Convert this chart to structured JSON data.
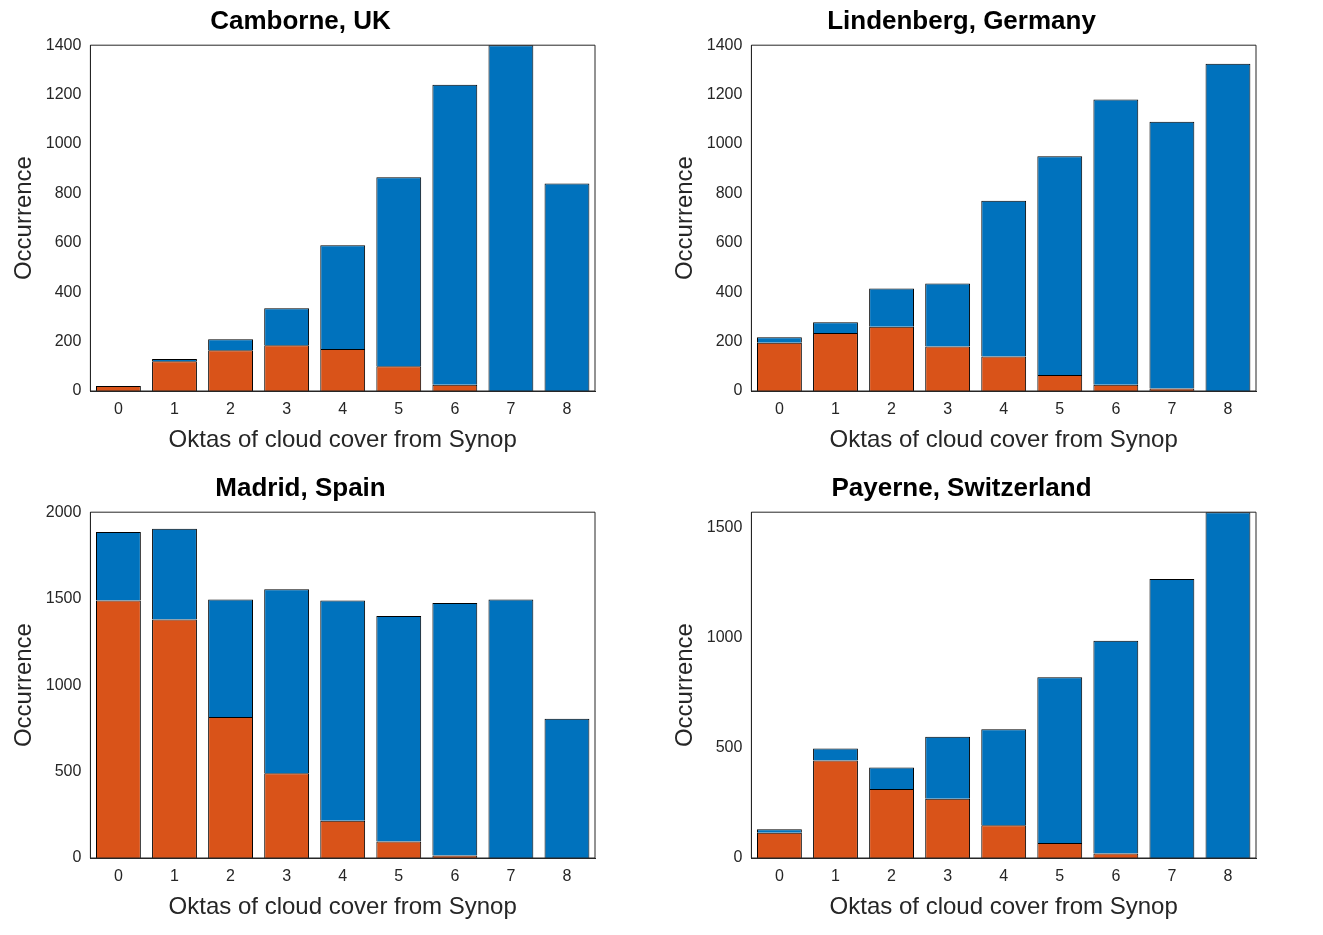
{
  "chart_data": [
    {
      "type": "bar",
      "title": "Camborne, UK",
      "xlabel": "Oktas of cloud cover from Synop",
      "ylabel": "Occurrence",
      "stacked": true,
      "grid": false,
      "categories": [
        "0",
        "1",
        "2",
        "3",
        "4",
        "5",
        "6",
        "7",
        "8"
      ],
      "ylim": [
        0,
        1400
      ],
      "yticks": [
        0,
        200,
        400,
        600,
        800,
        1000,
        1200,
        1400
      ],
      "series": [
        {
          "color": "#d95319",
          "values": [
            20,
            120,
            165,
            185,
            170,
            100,
            25,
            0,
            0
          ]
        },
        {
          "color": "#0072bd",
          "values": [
            0,
            10,
            45,
            150,
            420,
            765,
            1215,
            1400,
            840
          ]
        }
      ]
    },
    {
      "type": "bar",
      "title": "Lindenberg, Germany",
      "xlabel": "Oktas of cloud cover from Synop",
      "ylabel": "Occurrence",
      "stacked": true,
      "grid": false,
      "categories": [
        "0",
        "1",
        "2",
        "3",
        "4",
        "5",
        "6",
        "7",
        "8"
      ],
      "ylim": [
        0,
        1400
      ],
      "yticks": [
        0,
        200,
        400,
        600,
        800,
        1000,
        1200,
        1400
      ],
      "series": [
        {
          "color": "#d95319",
          "values": [
            195,
            235,
            260,
            180,
            140,
            65,
            25,
            10,
            0
          ]
        },
        {
          "color": "#0072bd",
          "values": [
            23,
            43,
            155,
            255,
            630,
            885,
            1155,
            1080,
            1325
          ]
        }
      ]
    },
    {
      "type": "bar",
      "title": "Madrid, Spain",
      "xlabel": "Oktas of cloud cover from Synop",
      "ylabel": "Occurrence",
      "stacked": true,
      "grid": false,
      "categories": [
        "0",
        "1",
        "2",
        "3",
        "4",
        "5",
        "6",
        "7",
        "8"
      ],
      "ylim": [
        0,
        2000
      ],
      "yticks": [
        0,
        500,
        1000,
        1500,
        2000
      ],
      "series": [
        {
          "color": "#d95319",
          "values": [
            1490,
            1380,
            815,
            490,
            215,
            95,
            15,
            0,
            0
          ]
        },
        {
          "color": "#0072bd",
          "values": [
            395,
            525,
            680,
            1065,
            1275,
            1305,
            1460,
            1495,
            805
          ]
        }
      ]
    },
    {
      "type": "bar",
      "title": "Payerne, Switzerland",
      "xlabel": "Oktas of cloud cover from Synop",
      "ylabel": "Occurrence",
      "stacked": true,
      "grid": false,
      "categories": [
        "0",
        "1",
        "2",
        "3",
        "4",
        "5",
        "6",
        "7",
        "8"
      ],
      "ylim": [
        0,
        1570
      ],
      "yticks": [
        0,
        500,
        1000,
        1500
      ],
      "series": [
        {
          "color": "#d95319",
          "values": [
            115,
            443,
            313,
            269,
            149,
            68,
            20,
            0,
            0
          ]
        },
        {
          "color": "#0072bd",
          "values": [
            15,
            54,
            98,
            282,
            435,
            753,
            966,
            1267,
            1570
          ]
        }
      ]
    }
  ]
}
